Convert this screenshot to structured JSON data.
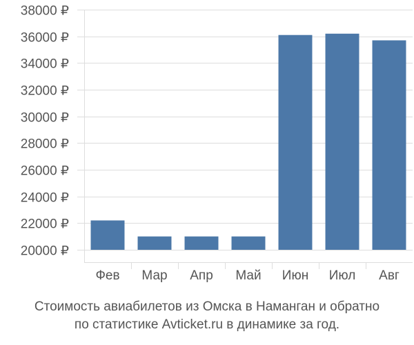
{
  "chart_data": {
    "type": "bar",
    "categories": [
      "Фев",
      "Мар",
      "Апр",
      "Май",
      "Июн",
      "Июл",
      "Авг"
    ],
    "values": [
      22200,
      21000,
      21000,
      21000,
      36100,
      36200,
      35700
    ],
    "ylim": [
      20000,
      38000
    ],
    "yticks": [
      20000,
      22000,
      24000,
      26000,
      28000,
      30000,
      32000,
      34000,
      36000,
      38000
    ],
    "ytick_labels": [
      "20000 ₽",
      "22000 ₽",
      "24000 ₽",
      "26000 ₽",
      "28000 ₽",
      "30000 ₽",
      "32000 ₽",
      "34000 ₽",
      "36000 ₽",
      "38000 ₽"
    ],
    "grid": true,
    "bar_color": "#4c78a8",
    "grid_color": "#dddddd",
    "title": ""
  },
  "caption": {
    "line1": "Стоимость авиабилетов из Омска в Наманган и обратно",
    "line2": "по статистике Avticket.ru в динамике за год."
  }
}
